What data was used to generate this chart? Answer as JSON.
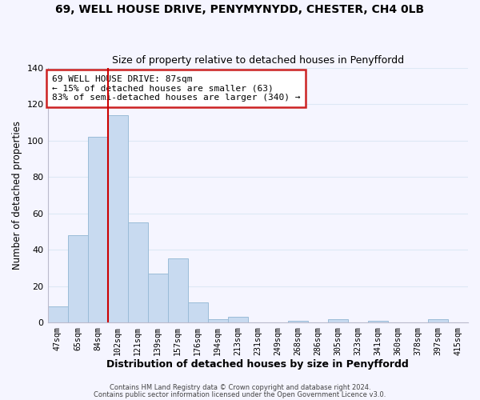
{
  "title_line1": "69, WELL HOUSE DRIVE, PENYMYNYDD, CHESTER, CH4 0LB",
  "title_line2": "Size of property relative to detached houses in Penyffordd",
  "xlabel": "Distribution of detached houses by size in Penyffordd",
  "ylabel": "Number of detached properties",
  "bar_labels": [
    "47sqm",
    "65sqm",
    "84sqm",
    "102sqm",
    "121sqm",
    "139sqm",
    "157sqm",
    "176sqm",
    "194sqm",
    "213sqm",
    "231sqm",
    "249sqm",
    "268sqm",
    "286sqm",
    "305sqm",
    "323sqm",
    "341sqm",
    "360sqm",
    "378sqm",
    "397sqm",
    "415sqm"
  ],
  "bar_values": [
    9,
    48,
    102,
    114,
    55,
    27,
    35,
    11,
    2,
    3,
    0,
    0,
    1,
    0,
    2,
    0,
    1,
    0,
    0,
    2,
    0
  ],
  "bar_color": "#c8daf0",
  "bar_edge_color": "#9abcd8",
  "vline_x_index": 2,
  "vline_color": "#cc0000",
  "ylim": [
    0,
    140
  ],
  "yticks": [
    0,
    20,
    40,
    60,
    80,
    100,
    120,
    140
  ],
  "annotation_title": "69 WELL HOUSE DRIVE: 87sqm",
  "annotation_line1": "← 15% of detached houses are smaller (63)",
  "annotation_line2": "83% of semi-detached houses are larger (340) →",
  "footer_line1": "Contains HM Land Registry data © Crown copyright and database right 2024.",
  "footer_line2": "Contains public sector information licensed under the Open Government Licence v3.0.",
  "background_color": "#f5f5ff",
  "grid_color": "#dde8f5"
}
